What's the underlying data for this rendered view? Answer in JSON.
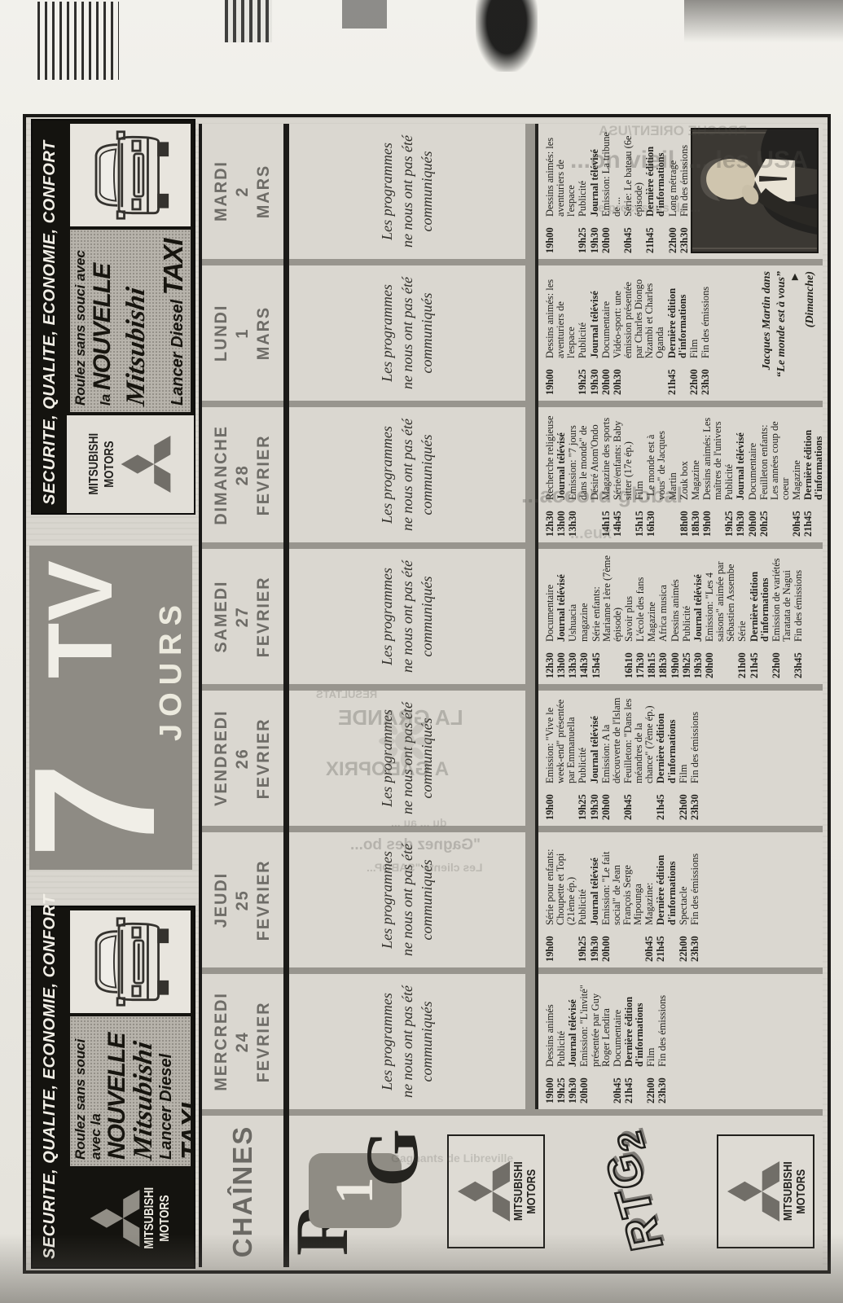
{
  "masthead": {
    "seven": "7",
    "tv": "TV",
    "jours": "JOURS"
  },
  "ad": {
    "banner": "SECURITE, QUALITE, ECONOMIE, CONFORT",
    "slogan_prefix": "Roulez sans souci avec la",
    "slogan_highlight": "NOUVELLE",
    "brand_script": "Mitsubishi",
    "model": "Lancer Diesel",
    "model_highlight": "TAXI",
    "maker_line1": "MITSUBISHI",
    "maker_line2": "MOTORS"
  },
  "channels": {
    "rtg1": {
      "r": "R",
      "one": "1",
      "g": "G"
    },
    "rtg2": {
      "letters": "RTG",
      "two": "2"
    }
  },
  "grid": {
    "chains_label": "CHAÎNES",
    "notice": [
      "Les programmes",
      "ne nous ont pas été",
      "communiqués"
    ],
    "caption": {
      "l1": "Jacques Martin dans",
      "l2": "“Le monde est à vous”",
      "l3": "(Dimanche)",
      "arrow": "►"
    },
    "days": [
      {
        "name": "MERCREDI",
        "num": "24",
        "month": "FEVRIER",
        "listings": [
          {
            "t": "19h00",
            "p": "Dessins animés"
          },
          {
            "t": "19h25",
            "p": "Publicité"
          },
          {
            "t": "19h30",
            "p": "Journal télévisé",
            "b": true
          },
          {
            "t": "20h00",
            "p": "Emission: \"L'invité\" présentée par Guy Roger Lendira"
          },
          {
            "t": "20h45",
            "p": "Documentaire"
          },
          {
            "t": "21h45",
            "p": "Dernière édition d'informations",
            "b": true
          },
          {
            "t": "22h00",
            "p": "Film"
          },
          {
            "t": "23h30",
            "p": "Fin des émissions"
          }
        ]
      },
      {
        "name": "JEUDI",
        "num": "25",
        "month": "FEVRIER",
        "listings": [
          {
            "t": "19h00",
            "p": "Série pour enfants: Choupette et Topi (21ème ép.)"
          },
          {
            "t": "19h25",
            "p": "Publicité"
          },
          {
            "t": "19h30",
            "p": "Journal télévisé",
            "b": true
          },
          {
            "t": "20h00",
            "p": "Emission: \"Le fait social\" de Jean François Serge Mipounga"
          },
          {
            "t": "20h45",
            "p": "Magazine:"
          },
          {
            "t": "21h45",
            "p": "Dernière édition d'informations",
            "b": true
          },
          {
            "t": "22h00",
            "p": "Spectacle"
          },
          {
            "t": "23h30",
            "p": "Fin des émissions"
          }
        ]
      },
      {
        "name": "VENDREDI",
        "num": "26",
        "month": "FEVRIER",
        "listings": [
          {
            "t": "19h00",
            "p": "Emission: \"Vive le week-end\" présentée par Emmanuella"
          },
          {
            "t": "19h25",
            "p": "Publicité"
          },
          {
            "t": "19h30",
            "p": "Journal télévisé",
            "b": true
          },
          {
            "t": "20h00",
            "p": "Emission: A la découverte de l'Islam"
          },
          {
            "t": "20h45",
            "p": "Feuilleton: \"Dans les méandres de la chance\" (7ème ép.)"
          },
          {
            "t": "21h45",
            "p": "Dernière édition d'informations",
            "b": true
          },
          {
            "t": "22h00",
            "p": "Film"
          },
          {
            "t": "23h30",
            "p": "Fin des émissions"
          }
        ]
      },
      {
        "name": "SAMEDI",
        "num": "27",
        "month": "FEVRIER",
        "listings": [
          {
            "t": "12h30",
            "p": "Documentaire"
          },
          {
            "t": "13h00",
            "p": "Journal télévisé",
            "b": true
          },
          {
            "t": "13h30",
            "p": "Ushuacia"
          },
          {
            "t": "14h30",
            "p": "magazine"
          },
          {
            "t": "15h45",
            "p": "Série enfants: Marianne 1ère (7ème épisode)"
          },
          {
            "t": "16h10",
            "p": "Savoir plus"
          },
          {
            "t": "17h30",
            "p": "L'école des fans"
          },
          {
            "t": "18h15",
            "p": "Magazine"
          },
          {
            "t": "18h30",
            "p": "Africa musica"
          },
          {
            "t": "19h00",
            "p": "Dessins animés"
          },
          {
            "t": "19h25",
            "p": "Publicité"
          },
          {
            "t": "19h30",
            "p": "Journal télévisé",
            "b": true
          },
          {
            "t": "20h00",
            "p": "Emission: \"Les 4 saisons\" animée par Sébastien Assembe"
          },
          {
            "t": "21h00",
            "p": "Série"
          },
          {
            "t": "21h45",
            "p": "Dernière édition d'informations",
            "b": true
          },
          {
            "t": "22h00",
            "p": "Emission de variétés Taratata de Nagui"
          },
          {
            "t": "23h45",
            "p": "Fin des émissions"
          }
        ]
      },
      {
        "name": "DIMANCHE",
        "num": "28",
        "month": "FEVRIER",
        "listings": [
          {
            "t": "12h30",
            "p": "Recherche religieuse"
          },
          {
            "t": "13h00",
            "p": "Journal télévisé",
            "b": true
          },
          {
            "t": "13h30",
            "p": "Emission: \"7 jours dans le monde\" de Désiré Atom'Ondo"
          },
          {
            "t": "14h15",
            "p": "Magazine des sports"
          },
          {
            "t": "14h45",
            "p": "Série/enfants: Baby sitter (17e ép.)"
          },
          {
            "t": "15h15",
            "p": "Film"
          },
          {
            "t": "16h30",
            "p": "\"Le monde est à vous\" de Jacques Martin"
          },
          {
            "t": "18h00",
            "p": "Zouk box"
          },
          {
            "t": "18h30",
            "p": "Magazine"
          },
          {
            "t": "19h00",
            "p": "Dessins animés: Les maîtres de l'univers"
          },
          {
            "t": "19h25",
            "p": "Publicité"
          },
          {
            "t": "19h30",
            "p": "Journal télévisé",
            "b": true
          },
          {
            "t": "20h00",
            "p": "Documentaire"
          },
          {
            "t": "20h25",
            "p": "Feuilleton enfants: Les années coup de coeur"
          },
          {
            "t": "20h45",
            "p": "Magazine"
          },
          {
            "t": "21h45",
            "p": "Dernière édition d'informations",
            "b": true
          },
          {
            "t": "22h00",
            "p": "Film"
          },
          {
            "t": "23h30",
            "p": "Fin des émissions"
          }
        ]
      },
      {
        "name": "LUNDI",
        "num": "1",
        "month": "MARS",
        "has_caption": true,
        "listings": [
          {
            "t": "19h00",
            "p": "Dessins animés: les aventuriers de l'espace"
          },
          {
            "t": "19h25",
            "p": "Publicité"
          },
          {
            "t": "19h30",
            "p": "Journal télévisé",
            "b": true
          },
          {
            "t": "20h00",
            "p": "Documentaire"
          },
          {
            "t": "20h30",
            "p": "Vidéo-sport: une émission présentée par Charles Diongo Nzambi et Charles Oganda"
          },
          {
            "t": "21h45",
            "p": "Dernière édition d'informations",
            "b": true
          },
          {
            "t": "22h00",
            "p": "Film"
          },
          {
            "t": "23h30",
            "p": "Fin des émissions"
          }
        ]
      },
      {
        "name": "MARDI",
        "num": "2",
        "month": "MARS",
        "has_photo": true,
        "listings": [
          {
            "t": "19h00",
            "p": "Dessins animés: les aventuriers de l'espace"
          },
          {
            "t": "19h25",
            "p": "Publicité"
          },
          {
            "t": "19h30",
            "p": "Journal télévisé",
            "b": true
          },
          {
            "t": "20h00",
            "p": "Emission: La tribune de ..."
          },
          {
            "t": "20h45",
            "p": "Série: Le bateau (6e épisode)"
          },
          {
            "t": "21h45",
            "p": "Dernière édition d'informations",
            "b": true
          },
          {
            "t": "22h00",
            "p": "Long métrage"
          },
          {
            "t": "23h30",
            "p": "Fin des émissions"
          }
        ]
      }
    ]
  },
  "ghosts": {
    "proche": "PROCHE ORIENT/USA",
    "usa": "...on vieil ..., les USA",
    "processus": "le processus de ...",
    "accord": "...accord global",
    "eux": "...eux",
    "resultats": "RESULTATS",
    "grande": "LA GRANDE",
    "gaboprix": "A GABOPRIX",
    "du": "du ... au ...",
    "gagnez": "\"Gagnez des bo...",
    "clients": "Les clients \"SABOP...",
    "gagnants": "Gagnants de Libreville"
  }
}
